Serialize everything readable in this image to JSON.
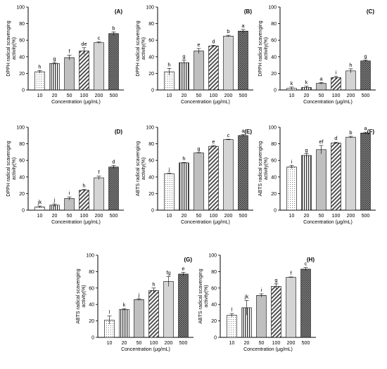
{
  "chart_data": [
    {
      "type": "bar",
      "panel_label": "(A)",
      "ylabel": "DPPH radical scavenging activity(%)",
      "xlabel": "Concentration (μg/mL)",
      "categories": [
        "10",
        "20",
        "50",
        "100",
        "200",
        "500"
      ],
      "values": [
        22,
        32,
        39,
        47,
        57,
        68
      ],
      "errors": [
        1.5,
        1,
        3,
        4,
        1,
        2
      ],
      "sig_letters": [
        "h",
        "g",
        "f",
        "de",
        "c",
        "b"
      ],
      "ylim": [
        0,
        100
      ],
      "yticks": [
        0,
        20,
        40,
        60,
        80,
        100
      ],
      "grid": false
    },
    {
      "type": "bar",
      "panel_label": "(B)",
      "ylabel": "DPPH radical scavenging activity(%)",
      "xlabel": "Concentration (μg/mL)",
      "categories": [
        "10",
        "20",
        "50",
        "100",
        "200",
        "500"
      ],
      "values": [
        22,
        33,
        47,
        53,
        65,
        71
      ],
      "errors": [
        4,
        3,
        3,
        1,
        1,
        2
      ],
      "sig_letters": [
        "h",
        "g",
        "e",
        "d",
        "b",
        "a"
      ],
      "ylim": [
        0,
        100
      ],
      "yticks": [
        0,
        20,
        40,
        60,
        80,
        100
      ],
      "grid": false
    },
    {
      "type": "bar",
      "panel_label": "(C)",
      "ylabel": "DPPH radical scavenging activity(%)",
      "xlabel": "Concentration (μg/mL)",
      "categories": [
        "10",
        "20",
        "50",
        "100",
        "200",
        "500"
      ],
      "values": [
        2,
        3,
        8,
        15,
        23,
        35
      ],
      "errors": [
        1.5,
        1.5,
        1,
        1.5,
        2.5,
        1
      ],
      "sig_letters": [
        "k",
        "k",
        "a",
        "i",
        "h",
        "g"
      ],
      "ylim": [
        0,
        100
      ],
      "yticks": [
        0,
        20,
        40,
        60,
        80,
        100
      ],
      "grid": false
    },
    {
      "type": "bar",
      "panel_label": "(D)",
      "ylabel": "DPPH radical scavenging activity(%)",
      "xlabel": "Concentration (μg/mL)",
      "categories": [
        "10",
        "20",
        "50",
        "100",
        "200",
        "500"
      ],
      "values": [
        4,
        6,
        14,
        24,
        39,
        52
      ],
      "errors": [
        1,
        1.5,
        2,
        1,
        2,
        2
      ],
      "sig_letters": [
        "jk",
        "j",
        "i",
        "h",
        "f",
        "d"
      ],
      "ylim": [
        0,
        100
      ],
      "yticks": [
        0,
        20,
        40,
        60,
        80,
        100
      ],
      "grid": false
    },
    {
      "type": "bar",
      "panel_label": "(E)",
      "ylabel": "ABTS radical scavenging activity(%)",
      "xlabel": "Concentration (μg/mL)",
      "categories": [
        "10",
        "20",
        "50",
        "100",
        "200",
        "500"
      ],
      "values": [
        44,
        57,
        69,
        77,
        85,
        90
      ],
      "errors": [
        0.5,
        0.5,
        0.5,
        1,
        0.5,
        1
      ],
      "sig_letters": [
        "j",
        "h",
        "g",
        "e",
        "c",
        "a"
      ],
      "ylim": [
        0,
        100
      ],
      "yticks": [
        0,
        20,
        40,
        60,
        80,
        100
      ],
      "grid": false
    },
    {
      "type": "bar",
      "panel_label": "(F)",
      "ylabel": "ABTS radical scavenging activity(%)",
      "xlabel": "Concentration (μg/mL)",
      "categories": [
        "10",
        "20",
        "50",
        "100",
        "200",
        "500"
      ],
      "values": [
        52,
        66,
        73,
        81,
        88,
        93
      ],
      "errors": [
        2,
        2,
        5,
        1,
        1,
        1
      ],
      "sig_letters": [
        "i",
        "g",
        "ef",
        "d",
        "b",
        "a"
      ],
      "ylim": [
        0,
        100
      ],
      "yticks": [
        0,
        20,
        40,
        60,
        80,
        100
      ],
      "grid": false
    },
    {
      "type": "bar",
      "panel_label": "(G)",
      "ylabel": "ABTS radical scavenging activity(%)",
      "xlabel": "Concentration (μg/mL)",
      "categories": [
        "10",
        "20",
        "50",
        "100",
        "200",
        "500"
      ],
      "values": [
        21,
        34,
        46,
        57,
        68,
        77
      ],
      "errors": [
        5,
        1,
        1,
        3,
        6,
        2
      ],
      "sig_letters": [
        "l",
        "k",
        "j",
        "h",
        "fg",
        "e"
      ],
      "ylim": [
        0,
        100
      ],
      "yticks": [
        0,
        20,
        40,
        60,
        80,
        100
      ],
      "grid": false
    },
    {
      "type": "bar",
      "panel_label": "(H)",
      "ylabel": "ABTS radical scavenging activity(%)",
      "xlabel": "Concentration (μg/mL)",
      "categories": [
        "10",
        "20",
        "50",
        "100",
        "200",
        "500"
      ],
      "values": [
        27,
        36,
        51,
        62,
        73,
        83
      ],
      "errors": [
        2,
        9,
        2,
        3,
        0.5,
        2
      ],
      "sig_letters": [
        "l",
        "jk",
        "i",
        "g",
        "f",
        "c"
      ],
      "ylim": [
        0,
        100
      ],
      "yticks": [
        0,
        20,
        40,
        60,
        80,
        100
      ],
      "grid": false
    }
  ],
  "style": {
    "bar_patterns": [
      "dots",
      "vertical-lines",
      "dense-dots",
      "diagonal",
      "light-gray",
      "crosshatch"
    ]
  }
}
